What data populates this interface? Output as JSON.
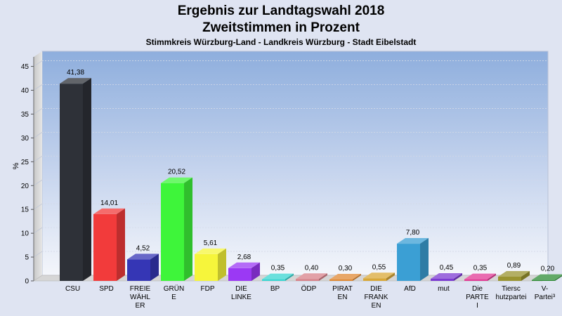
{
  "title": "Ergebnis zur Landtagswahl 2018",
  "title2": "Zweitstimmen in Prozent",
  "subtitle": "Stimmkreis Würzburg-Land - Landkreis Würzburg - Stadt Eibelstadt",
  "chart_data": {
    "type": "bar",
    "ylabel": "%",
    "ylim": [
      0,
      47
    ],
    "yticks": [
      0,
      5,
      10,
      15,
      20,
      25,
      30,
      35,
      40,
      45
    ],
    "grid": true,
    "categories": [
      [
        "CSU"
      ],
      [
        "SPD"
      ],
      [
        "FREIE",
        "WÄHL",
        "ER"
      ],
      [
        "GRÜN",
        "E"
      ],
      [
        "FDP"
      ],
      [
        "DIE",
        "LINKE"
      ],
      [
        "BP"
      ],
      [
        "ÖDP"
      ],
      [
        "PIRAT",
        "EN"
      ],
      [
        "DIE",
        "FRANK",
        "EN"
      ],
      [
        "AfD"
      ],
      [
        "mut"
      ],
      [
        "Die",
        "PARTE",
        "I"
      ],
      [
        "Tiersc",
        "hutzpartei"
      ],
      [
        "V-",
        "Partei³"
      ]
    ],
    "values": [
      41.38,
      14.01,
      4.52,
      20.52,
      5.61,
      2.68,
      0.35,
      0.4,
      0.3,
      0.55,
      7.8,
      0.45,
      0.35,
      0.89,
      0.2
    ],
    "value_labels": [
      "41,38",
      "14,01",
      "4,52",
      "20,52",
      "5,61",
      "2,68",
      "0,35",
      "0,40",
      "0,30",
      "0,55",
      "7,80",
      "0,45",
      "0,35",
      "0,89",
      "0,20"
    ],
    "colors": [
      "#2e3138",
      "#f23b3b",
      "#3536b5",
      "#3ef53a",
      "#f6f53b",
      "#9b39f4",
      "#39d6d2",
      "#d8828a",
      "#e08a35",
      "#d9a838",
      "#3b9fd4",
      "#7c3bd2",
      "#e23b96",
      "#9a9430",
      "#2e8c36"
    ]
  }
}
